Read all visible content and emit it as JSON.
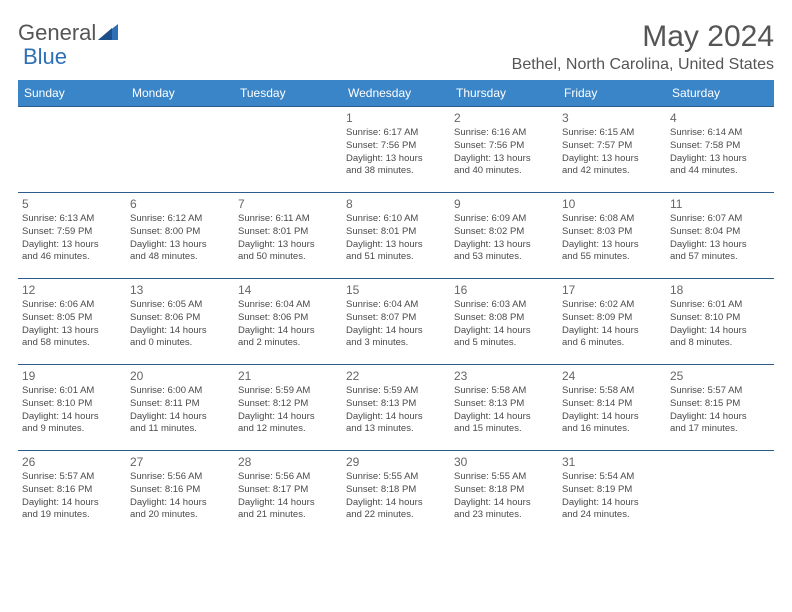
{
  "logo": {
    "text1": "General",
    "text2": "Blue"
  },
  "title": "May 2024",
  "location": "Bethel, North Carolina, United States",
  "colors": {
    "header_bg": "#3a85c8",
    "header_text": "#ffffff",
    "border": "#2e5c8a",
    "text_gray": "#555555",
    "logo_blue": "#2e6fb5"
  },
  "day_headers": [
    "Sunday",
    "Monday",
    "Tuesday",
    "Wednesday",
    "Thursday",
    "Friday",
    "Saturday"
  ],
  "weeks": [
    [
      null,
      null,
      null,
      {
        "n": "1",
        "sr": "6:17 AM",
        "ss": "7:56 PM",
        "dh": "13",
        "dm": "38"
      },
      {
        "n": "2",
        "sr": "6:16 AM",
        "ss": "7:56 PM",
        "dh": "13",
        "dm": "40"
      },
      {
        "n": "3",
        "sr": "6:15 AM",
        "ss": "7:57 PM",
        "dh": "13",
        "dm": "42"
      },
      {
        "n": "4",
        "sr": "6:14 AM",
        "ss": "7:58 PM",
        "dh": "13",
        "dm": "44"
      }
    ],
    [
      {
        "n": "5",
        "sr": "6:13 AM",
        "ss": "7:59 PM",
        "dh": "13",
        "dm": "46"
      },
      {
        "n": "6",
        "sr": "6:12 AM",
        "ss": "8:00 PM",
        "dh": "13",
        "dm": "48"
      },
      {
        "n": "7",
        "sr": "6:11 AM",
        "ss": "8:01 PM",
        "dh": "13",
        "dm": "50"
      },
      {
        "n": "8",
        "sr": "6:10 AM",
        "ss": "8:01 PM",
        "dh": "13",
        "dm": "51"
      },
      {
        "n": "9",
        "sr": "6:09 AM",
        "ss": "8:02 PM",
        "dh": "13",
        "dm": "53"
      },
      {
        "n": "10",
        "sr": "6:08 AM",
        "ss": "8:03 PM",
        "dh": "13",
        "dm": "55"
      },
      {
        "n": "11",
        "sr": "6:07 AM",
        "ss": "8:04 PM",
        "dh": "13",
        "dm": "57"
      }
    ],
    [
      {
        "n": "12",
        "sr": "6:06 AM",
        "ss": "8:05 PM",
        "dh": "13",
        "dm": "58"
      },
      {
        "n": "13",
        "sr": "6:05 AM",
        "ss": "8:06 PM",
        "dh": "14",
        "dm": "0"
      },
      {
        "n": "14",
        "sr": "6:04 AM",
        "ss": "8:06 PM",
        "dh": "14",
        "dm": "2"
      },
      {
        "n": "15",
        "sr": "6:04 AM",
        "ss": "8:07 PM",
        "dh": "14",
        "dm": "3"
      },
      {
        "n": "16",
        "sr": "6:03 AM",
        "ss": "8:08 PM",
        "dh": "14",
        "dm": "5"
      },
      {
        "n": "17",
        "sr": "6:02 AM",
        "ss": "8:09 PM",
        "dh": "14",
        "dm": "6"
      },
      {
        "n": "18",
        "sr": "6:01 AM",
        "ss": "8:10 PM",
        "dh": "14",
        "dm": "8"
      }
    ],
    [
      {
        "n": "19",
        "sr": "6:01 AM",
        "ss": "8:10 PM",
        "dh": "14",
        "dm": "9"
      },
      {
        "n": "20",
        "sr": "6:00 AM",
        "ss": "8:11 PM",
        "dh": "14",
        "dm": "11"
      },
      {
        "n": "21",
        "sr": "5:59 AM",
        "ss": "8:12 PM",
        "dh": "14",
        "dm": "12"
      },
      {
        "n": "22",
        "sr": "5:59 AM",
        "ss": "8:13 PM",
        "dh": "14",
        "dm": "13"
      },
      {
        "n": "23",
        "sr": "5:58 AM",
        "ss": "8:13 PM",
        "dh": "14",
        "dm": "15"
      },
      {
        "n": "24",
        "sr": "5:58 AM",
        "ss": "8:14 PM",
        "dh": "14",
        "dm": "16"
      },
      {
        "n": "25",
        "sr": "5:57 AM",
        "ss": "8:15 PM",
        "dh": "14",
        "dm": "17"
      }
    ],
    [
      {
        "n": "26",
        "sr": "5:57 AM",
        "ss": "8:16 PM",
        "dh": "14",
        "dm": "19"
      },
      {
        "n": "27",
        "sr": "5:56 AM",
        "ss": "8:16 PM",
        "dh": "14",
        "dm": "20"
      },
      {
        "n": "28",
        "sr": "5:56 AM",
        "ss": "8:17 PM",
        "dh": "14",
        "dm": "21"
      },
      {
        "n": "29",
        "sr": "5:55 AM",
        "ss": "8:18 PM",
        "dh": "14",
        "dm": "22"
      },
      {
        "n": "30",
        "sr": "5:55 AM",
        "ss": "8:18 PM",
        "dh": "14",
        "dm": "23"
      },
      {
        "n": "31",
        "sr": "5:54 AM",
        "ss": "8:19 PM",
        "dh": "14",
        "dm": "24"
      },
      null
    ]
  ],
  "labels": {
    "sunrise": "Sunrise:",
    "sunset": "Sunset:",
    "daylight": "Daylight:",
    "hours": "hours",
    "and": "and",
    "minutes": "minutes."
  }
}
